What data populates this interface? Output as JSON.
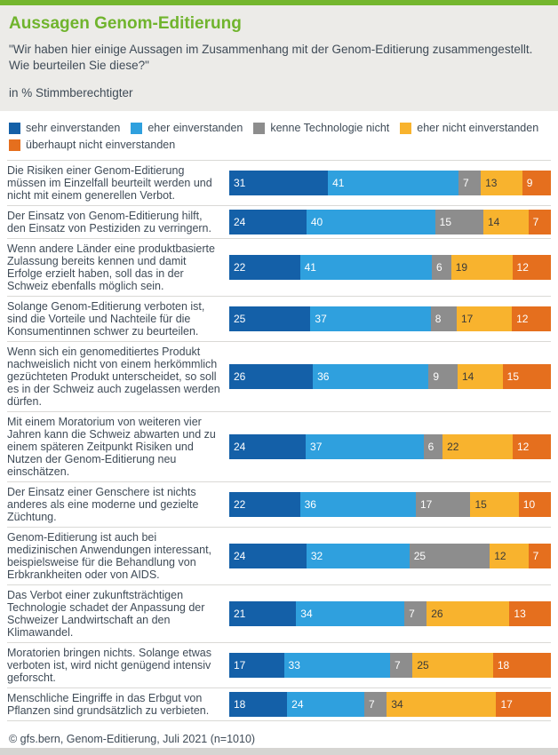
{
  "header": {
    "title": "Aussagen Genom-Editierung",
    "question": "\"Wir haben hier einige Aussagen im Zusammenhang mit der Genom-Editierung zusammengestellt. Wie beurteilen Sie diese?\"",
    "unit_label": "in % Stimmberechtigter"
  },
  "footer": {
    "source": "© gfs.bern, Genom-Editierung, Juli 2021 (n=1010)"
  },
  "colors": {
    "accent_green": "#74B62E",
    "title_green": "#70B42D",
    "header_background": "#ECEBE8",
    "text": "#3F4B57",
    "separator": "#DAD9D6",
    "bottom_bar": "#D6D5D2"
  },
  "legend": {
    "items": [
      {
        "key": "sehr-einverstanden",
        "label": "sehr einverstanden",
        "color": "#1460A8",
        "value_text_color": "#FFFFFF"
      },
      {
        "key": "eher-einverstanden",
        "label": "eher einverstanden",
        "color": "#2FA0DE",
        "value_text_color": "#FFFFFF"
      },
      {
        "key": "kenne-technologie-nicht",
        "label": "kenne Technologie nicht",
        "color": "#8D8D8D",
        "value_text_color": "#FFFFFF"
      },
      {
        "key": "eher-nicht-einverstanden",
        "label": "eher nicht einverstanden",
        "color": "#F8B32E",
        "value_text_color": "#3A3A39"
      },
      {
        "key": "ueberhaupt-nicht-einverstanden",
        "label": "überhaupt nicht einverstanden",
        "color": "#E56F1E",
        "value_text_color": "#FFFFFF"
      }
    ]
  },
  "chart_data": {
    "type": "bar",
    "stacked": true,
    "orientation": "horizontal",
    "unit": "% Stimmberechtigter",
    "series": [
      "sehr einverstanden",
      "eher einverstanden",
      "kenne Technologie nicht",
      "eher nicht einverstanden",
      "überhaupt nicht einverstanden"
    ],
    "rows": [
      {
        "statement": "Die Risiken einer Genom-Editierung müssen im Einzelfall beurteilt werden und nicht mit einem generellen Verbot.",
        "values": [
          31,
          41,
          7,
          13,
          9
        ]
      },
      {
        "statement": "Der Einsatz von Genom-Editierung hilft, den Einsatz von Pestiziden zu verringern.",
        "values": [
          24,
          40,
          15,
          14,
          7
        ]
      },
      {
        "statement": "Wenn andere Länder eine produktbasierte Zulassung bereits kennen und damit Erfolge erzielt haben, soll das in der Schweiz ebenfalls möglich sein.",
        "values": [
          22,
          41,
          6,
          19,
          12
        ]
      },
      {
        "statement": "Solange Genom-Editierung verboten ist, sind die Vorteile und Nachteile für die Konsumentinnen schwer zu beurteilen.",
        "values": [
          25,
          37,
          8,
          17,
          12
        ]
      },
      {
        "statement": "Wenn sich ein genomeditiertes Produkt nachweislich nicht von einem herkömmlich gezüchteten Produkt unterscheidet, so soll es in der Schweiz auch zugelassen werden dürfen.",
        "values": [
          26,
          36,
          9,
          14,
          15
        ]
      },
      {
        "statement": "Mit einem Moratorium von weiteren vier Jahren kann die Schweiz abwarten und zu einem späteren Zeitpunkt Risiken und Nutzen der Genom-Editierung neu einschätzen.",
        "values": [
          24,
          37,
          6,
          22,
          12
        ]
      },
      {
        "statement": "Der Einsatz einer Genschere ist nichts anderes als eine moderne und gezielte Züchtung.",
        "values": [
          22,
          36,
          17,
          15,
          10
        ]
      },
      {
        "statement": "Genom-Editierung ist auch bei medizinischen Anwendungen interessant, beispielsweise für die Behandlung von Erbkrankheiten oder von AIDS.",
        "values": [
          24,
          32,
          25,
          12,
          7
        ]
      },
      {
        "statement": "Das Verbot einer zukunftsträchtigen Technologie schadet der Anpassung der Schweizer Landwirtschaft an den Klimawandel.",
        "values": [
          21,
          34,
          7,
          26,
          13
        ]
      },
      {
        "statement": "Moratorien bringen nichts. Solange etwas verboten ist, wird nicht genügend intensiv geforscht.",
        "values": [
          17,
          33,
          7,
          25,
          18
        ]
      },
      {
        "statement": "Menschliche Eingriffe in das Erbgut von Pflanzen sind grundsätzlich zu verbieten.",
        "values": [
          18,
          24,
          7,
          34,
          17
        ]
      }
    ]
  }
}
